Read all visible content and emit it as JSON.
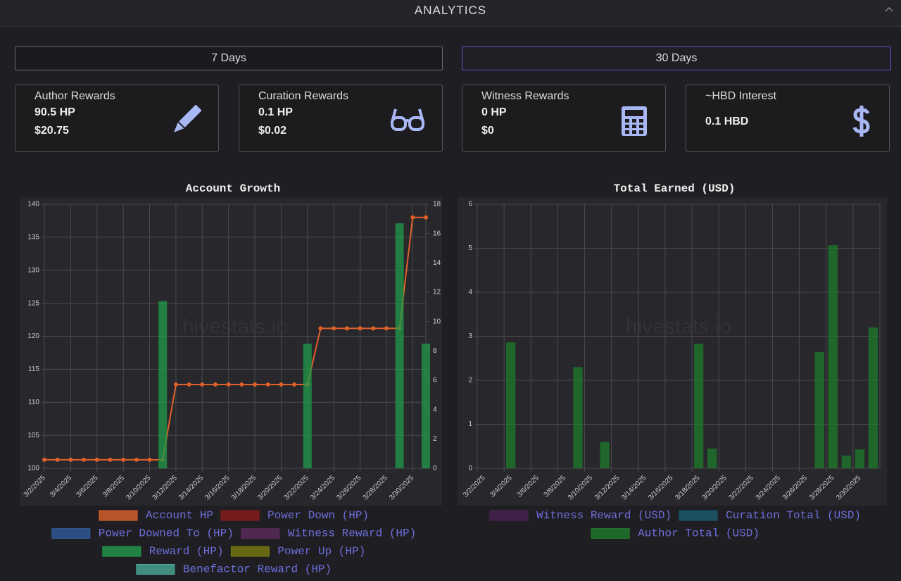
{
  "header": {
    "title": "ANALYTICS"
  },
  "tabs": [
    "7 Days",
    "30 Days"
  ],
  "cards": [
    {
      "title": "Author Rewards",
      "lines": [
        "90.5 HP",
        "$20.75"
      ]
    },
    {
      "title": "Curation Rewards",
      "lines": [
        "0.1 HP",
        "$0.02"
      ]
    },
    {
      "title": "Witness Rewards",
      "lines": [
        "0 HP",
        "$0"
      ]
    },
    {
      "title": "~HBD Interest",
      "lines": [
        "0.1 HBD"
      ]
    }
  ],
  "watermark": "hivestats.io",
  "chart_data": [
    {
      "type": "line",
      "title": "Account Growth",
      "categories": [
        "3/2/2025",
        null,
        "3/4/2025",
        null,
        "3/6/2025",
        null,
        "3/8/2025",
        null,
        "3/10/2025",
        null,
        "3/12/2025",
        null,
        "3/14/2025",
        null,
        "3/16/2025",
        null,
        "3/18/2025",
        null,
        "3/20/2025",
        null,
        "3/22/2025",
        null,
        "3/24/2025",
        null,
        "3/26/2025",
        null,
        "3/28/2025",
        null,
        "3/30/2025",
        null
      ],
      "series": [
        {
          "name": "Account HP",
          "color": "#e0602a",
          "axis": "y",
          "values": [
            101.3,
            101.3,
            101.3,
            101.3,
            101.3,
            101.3,
            101.3,
            101.3,
            101.3,
            101.3,
            112.7,
            112.7,
            112.7,
            112.7,
            112.7,
            112.7,
            112.7,
            112.7,
            112.7,
            112.7,
            112.7,
            121.2,
            121.2,
            121.2,
            121.2,
            121.2,
            121.2,
            121.2,
            138,
            138
          ]
        },
        {
          "name": "Power Down (HP)",
          "color": "#8b1a1a"
        },
        {
          "name": "Power Downed To (HP)",
          "color": "#2f5a9a"
        },
        {
          "name": "Witness Reward (HP)",
          "color": "#5a2a5a"
        },
        {
          "name": "Reward (HP)",
          "color": "#1f9a4a",
          "axis": "y2",
          "type": "bar",
          "values": [
            0,
            0,
            0,
            0,
            0,
            0,
            0,
            0,
            0,
            11.4,
            0,
            0,
            0,
            0,
            0,
            0,
            0,
            0,
            0,
            0,
            8.5,
            0,
            0,
            0,
            0,
            0,
            0,
            16.7,
            0,
            8.5
          ]
        },
        {
          "name": "Power Up (HP)",
          "color": "#7a7a10"
        },
        {
          "name": "Benefactor Reward (HP)",
          "color": "#4aaa98"
        }
      ],
      "ylim": [
        100,
        140
      ],
      "yticks": [
        100,
        105,
        110,
        115,
        120,
        125,
        130,
        135,
        140
      ],
      "y2lim": [
        0,
        18
      ],
      "y2ticks": [
        0,
        2,
        4,
        6,
        8,
        10,
        12,
        14,
        16,
        18
      ],
      "grid": true
    },
    {
      "type": "bar",
      "title": "Total Earned (USD)",
      "categories": [
        "3/2/2025",
        null,
        "3/4/2025",
        null,
        "3/6/2025",
        null,
        "3/8/2025",
        null,
        "3/10/2025",
        null,
        "3/12/2025",
        null,
        "3/14/2025",
        null,
        "3/16/2025",
        null,
        "3/18/2025",
        null,
        "3/20/2025",
        null,
        "3/22/2025",
        null,
        "3/24/2025",
        null,
        "3/26/2025",
        null,
        "3/28/2025",
        null,
        "3/30/2025",
        null
      ],
      "series": [
        {
          "name": "Witness Reward (USD)",
          "color": "#4a2050"
        },
        {
          "name": "Curation Total (USD)",
          "color": "#1a5a70"
        },
        {
          "name": "Author Total (USD)",
          "color": "#1e7a2a",
          "values": [
            0,
            0,
            2.86,
            0,
            0,
            0,
            0,
            2.3,
            0,
            0.6,
            0,
            0,
            0,
            0,
            0,
            0,
            2.83,
            0.45,
            0,
            0,
            0,
            0,
            0,
            0,
            0,
            2.64,
            5.07,
            0.29,
            0.43,
            3.2
          ]
        }
      ],
      "ylim": [
        0,
        6
      ],
      "yticks": [
        0,
        1,
        2,
        3,
        4,
        5,
        6
      ],
      "grid": true
    }
  ]
}
